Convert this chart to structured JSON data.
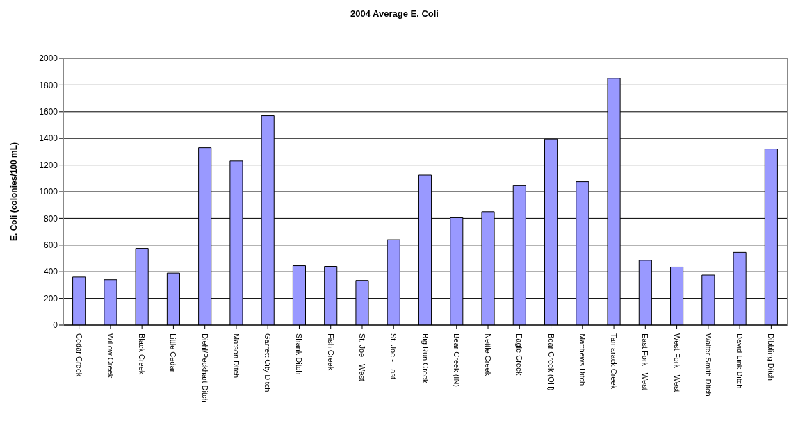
{
  "chart_data": {
    "type": "bar",
    "title": "2004 Average E. Coli",
    "ylabel": "E. Coli (colonies/100 mL)",
    "categories": [
      "Cedar Creek",
      "Willow  Creek",
      "Black Creek",
      "Little Cedar",
      "Diehl/Peckhart Ditch",
      "Matson Ditch",
      "Garrett City Ditch",
      "Shank Ditch",
      "Fish Creek",
      "St. Joe - West",
      "St. Joe - East",
      "Big Run Creek",
      "Bear Creek (IN)",
      "Nettle Creek",
      "Eagle Creek",
      "Bear Creek (OH)",
      "Matthews Ditch",
      "Tamarack Creek",
      "East Fork - West",
      "West Fork - West",
      "Walter Smith Ditch",
      "David Link Ditch",
      "Dibbling Ditch"
    ],
    "values": [
      360,
      340,
      575,
      390,
      1330,
      1230,
      1570,
      445,
      440,
      335,
      640,
      1125,
      805,
      850,
      1045,
      1395,
      1075,
      1850,
      485,
      435,
      375,
      545,
      1320
    ],
    "color": "#9999ff",
    "ylim": [
      0,
      2000
    ],
    "yticks": [
      0,
      200,
      400,
      600,
      800,
      1000,
      1200,
      1400,
      1600,
      1800,
      2000
    ],
    "grid": "y",
    "legend": false
  }
}
